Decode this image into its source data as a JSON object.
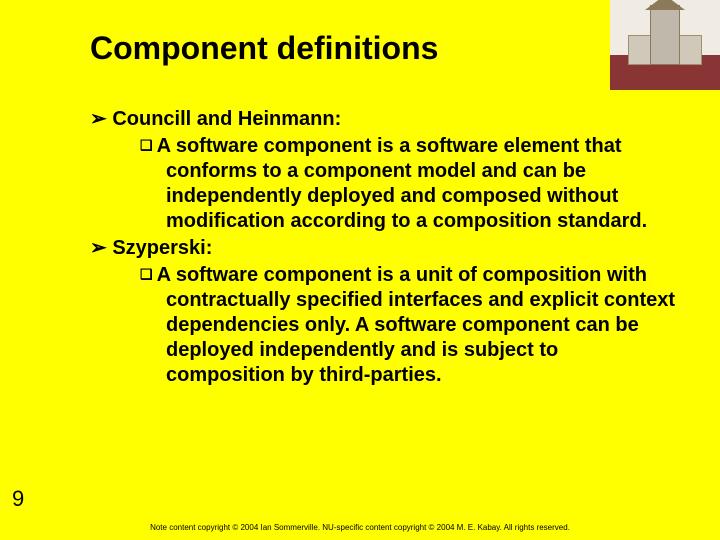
{
  "title": "Component definitions",
  "bullets": {
    "author1": "Councill and Heinmann:",
    "def1": "A software component is a software element that conforms to a component model and can be independently deployed and composed without modification according to a composition standard.",
    "author2": "Szyperski:",
    "def2": "A software component is a unit of composition with contractually specified interfaces and explicit context dependencies only. A software component can be deployed independently and is subject to composition by third-parties."
  },
  "slide_number": "9",
  "footer": "Note content copyright © 2004 Ian Sommerville. NU-specific content copyright © 2004 M. E. Kabay. All rights reserved.",
  "colors": {
    "background": "#ffff00",
    "text": "#000000",
    "logo_ground": "#8a3535",
    "logo_sky": "#f0ece3"
  }
}
